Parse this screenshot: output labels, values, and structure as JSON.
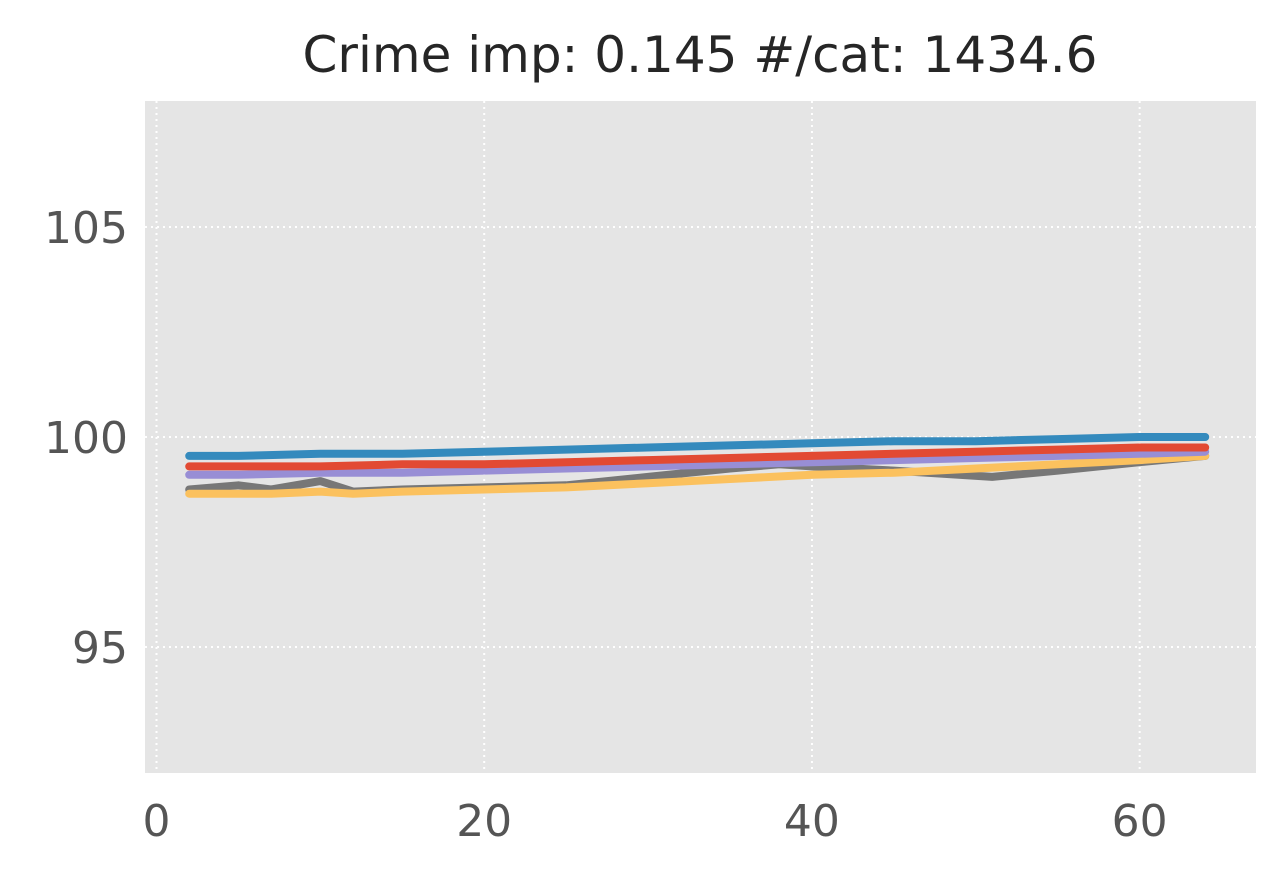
{
  "chart_data": {
    "type": "line",
    "title": "Crime imp: 0.145 #/cat: 1434.6",
    "xlabel": "",
    "ylabel": "",
    "xlim": [
      -0.7,
      67.1
    ],
    "ylim": [
      92.0,
      108.0
    ],
    "xticks": [
      0,
      20,
      40,
      60
    ],
    "yticks": [
      95,
      100,
      105
    ],
    "xtick_labels": [
      "0",
      "20",
      "40",
      "60"
    ],
    "ytick_labels": [
      "95",
      "100",
      "105"
    ],
    "grid": true,
    "style": "ggplot",
    "background_color": "#E5E5E5",
    "grid_color": "#FFFFFF",
    "series": [
      {
        "color": "#777777",
        "x": [
          2,
          5,
          7,
          10,
          12,
          15,
          20,
          25,
          30,
          35,
          38,
          40,
          45,
          51,
          55,
          60,
          64
        ],
        "y": [
          98.75,
          98.85,
          98.75,
          98.95,
          98.7,
          98.75,
          98.8,
          98.85,
          99.05,
          99.25,
          99.35,
          99.3,
          99.2,
          99.05,
          99.2,
          99.4,
          99.55
        ]
      },
      {
        "color": "#FBC15E",
        "x": [
          2,
          5,
          7,
          10,
          12,
          15,
          20,
          25,
          30,
          35,
          40,
          45,
          50,
          55,
          60,
          64
        ],
        "y": [
          98.65,
          98.65,
          98.65,
          98.7,
          98.65,
          98.7,
          98.75,
          98.8,
          98.9,
          99.0,
          99.1,
          99.15,
          99.25,
          99.35,
          99.45,
          99.55
        ]
      },
      {
        "color": "#988ED5",
        "x": [
          2,
          5,
          10,
          15,
          20,
          25,
          30,
          35,
          40,
          45,
          50,
          55,
          60,
          64
        ],
        "y": [
          99.1,
          99.1,
          99.15,
          99.15,
          99.2,
          99.25,
          99.3,
          99.35,
          99.4,
          99.45,
          99.5,
          99.55,
          99.6,
          99.65
        ]
      },
      {
        "color": "#E24A33",
        "x": [
          2,
          5,
          10,
          15,
          20,
          25,
          30,
          35,
          40,
          45,
          50,
          55,
          60,
          64
        ],
        "y": [
          99.3,
          99.3,
          99.3,
          99.35,
          99.35,
          99.4,
          99.45,
          99.5,
          99.55,
          99.6,
          99.65,
          99.7,
          99.75,
          99.75
        ]
      },
      {
        "color": "#348ABD",
        "x": [
          2,
          5,
          10,
          15,
          20,
          25,
          30,
          35,
          40,
          45,
          50,
          55,
          60,
          64
        ],
        "y": [
          99.55,
          99.55,
          99.6,
          99.6,
          99.65,
          99.7,
          99.75,
          99.8,
          99.85,
          99.9,
          99.9,
          99.95,
          100.0,
          100.0
        ]
      }
    ]
  }
}
